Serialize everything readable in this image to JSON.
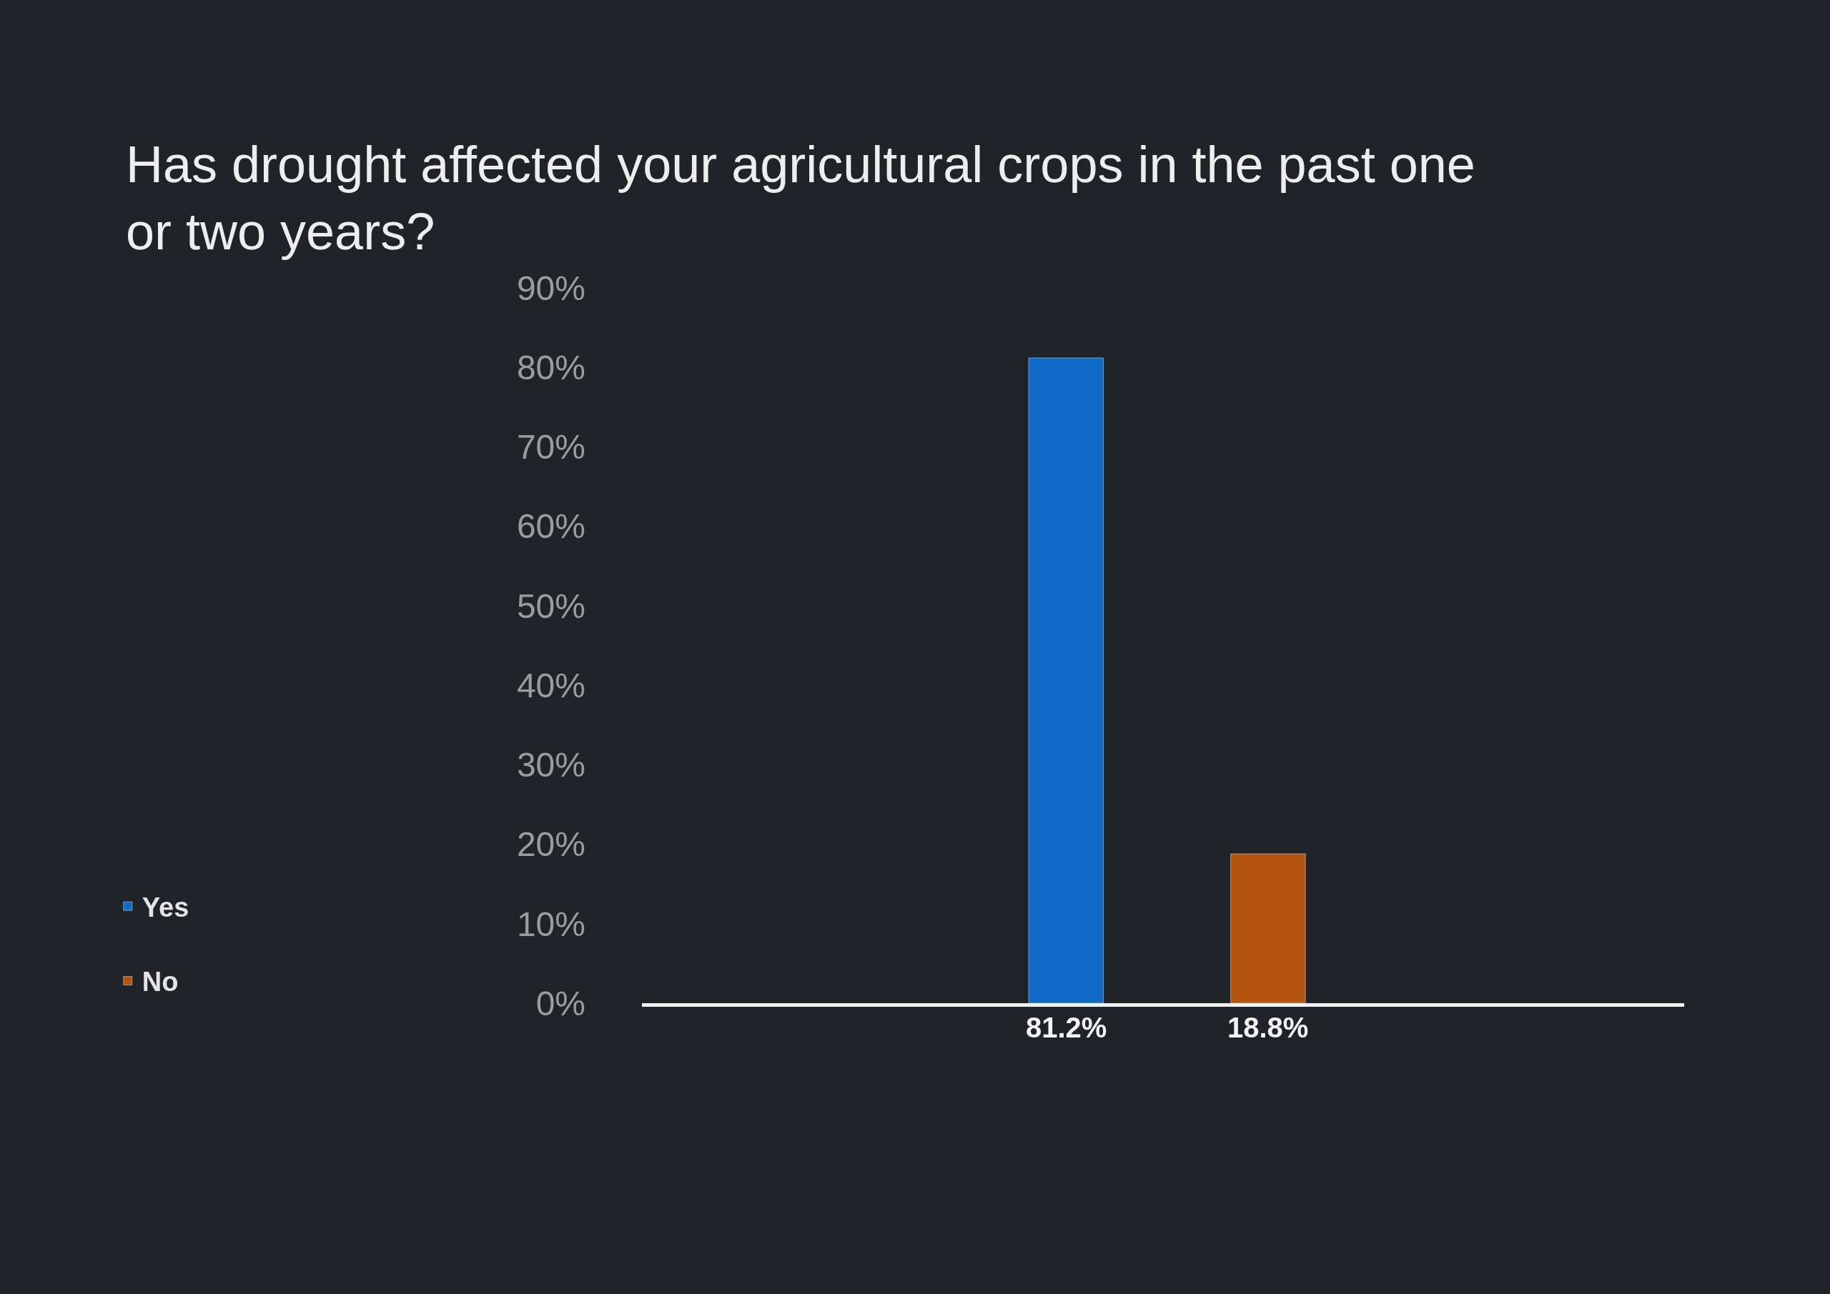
{
  "chart_data": {
    "type": "bar",
    "title": "Has drought affected your agricultural crops in the past one or two years?",
    "categories": [
      null,
      null
    ],
    "series": [
      {
        "name": "Yes",
        "color": "#0e6ac4",
        "values": [
          81.2,
          null
        ],
        "value_labels": [
          "81.2%",
          null
        ]
      },
      {
        "name": "No",
        "color": "#b5540e",
        "values": [
          null,
          18.8
        ],
        "value_labels": [
          null,
          "18.8%"
        ]
      }
    ],
    "ylim": [
      0,
      90
    ],
    "yticks": [
      {
        "value": 0,
        "label": "0%"
      },
      {
        "value": 10,
        "label": "10%"
      },
      {
        "value": 20,
        "label": "20%"
      },
      {
        "value": 30,
        "label": "30%"
      },
      {
        "value": 40,
        "label": "40%"
      },
      {
        "value": 50,
        "label": "50%"
      },
      {
        "value": 60,
        "label": "60%"
      },
      {
        "value": 70,
        "label": "70%"
      },
      {
        "value": 80,
        "label": "80%"
      },
      {
        "value": 90,
        "label": "90%"
      }
    ],
    "tick_labels": "y",
    "legend": "bottom left"
  }
}
